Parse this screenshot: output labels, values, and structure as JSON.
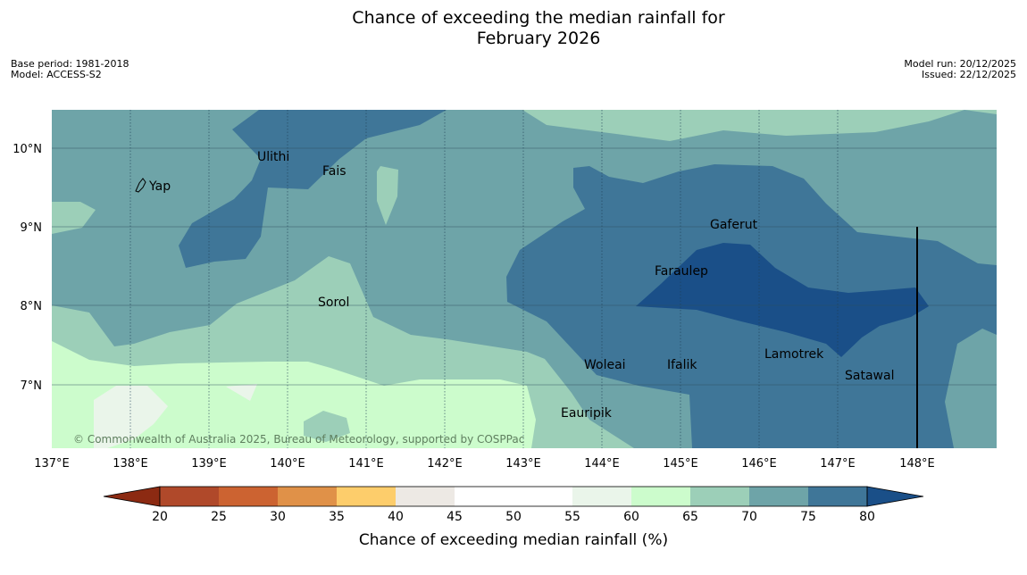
{
  "header": {
    "title_line1": "Chance of exceeding the median rainfall for",
    "title_line2": "February 2026",
    "base_period": "Base period: 1981-2018",
    "model": "Model: ACCESS-S2",
    "model_run": "Model run: 20/12/2025",
    "issued": "Issued: 22/12/2025"
  },
  "map": {
    "lon_ticks": [
      "137°E",
      "138°E",
      "139°E",
      "140°E",
      "141°E",
      "142°E",
      "143°E",
      "144°E",
      "145°E",
      "146°E",
      "147°E",
      "148°E"
    ],
    "lat_ticks": [
      "10°N",
      "9°N",
      "8°N",
      "7°N"
    ],
    "places": [
      "Yap",
      "Ulithi",
      "Fais",
      "Gaferut",
      "Faraulep",
      "Sorol",
      "Lamotrek",
      "Woleai",
      "Ifalik",
      "Satawal",
      "Eauripik"
    ],
    "copyright": "© Commonwealth of Australia 2025, Bureau of Meteorology, supported by COSPPac"
  },
  "colorbar": {
    "label": "Chance of exceeding median rainfall (%)",
    "ticks": [
      "20",
      "25",
      "30",
      "35",
      "40",
      "45",
      "50",
      "55",
      "60",
      "65",
      "70",
      "75",
      "80"
    ],
    "colors": [
      "#8c2a12",
      "#b0492a",
      "#cc6331",
      "#e09148",
      "#fdcd6b",
      "#ede9e4",
      "#ffffff",
      "#ffffff",
      "#eaf5ea",
      "#ccfccc",
      "#9ccfb8",
      "#6ea4a8",
      "#3f7698",
      "#1a4f88"
    ]
  }
}
